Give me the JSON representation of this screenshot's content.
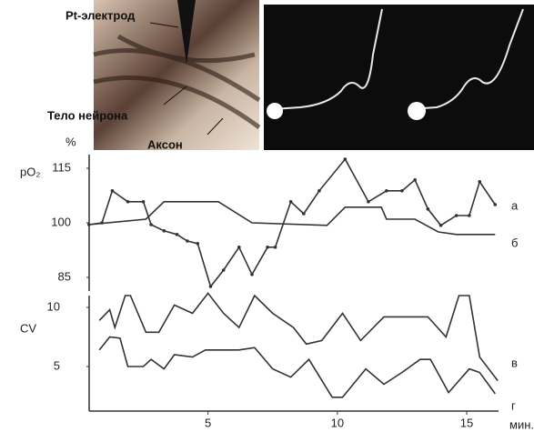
{
  "photos": {
    "labels": [
      "Pt-электрод",
      "Тело нейрона",
      "Аксон"
    ]
  },
  "chart_data": [
    {
      "type": "line",
      "ylabel": "pO₂",
      "ylabel_unit": "%",
      "xlim": [
        0.3,
        16.3
      ],
      "ylim": [
        82,
        119
      ],
      "yticks": [
        85,
        100,
        115
      ],
      "series": [
        {
          "name": "а",
          "color": "#333333",
          "markers": true,
          "x": [
            0.4,
            0.9,
            1.3,
            1.9,
            2.5,
            2.8,
            3.3,
            3.8,
            4.2,
            4.6,
            5.1,
            5.6,
            6.2,
            6.7,
            7.3,
            7.6,
            8.2,
            8.7,
            9.3,
            10.3,
            11.2,
            11.9,
            12.5,
            13.0,
            13.5,
            14.0,
            14.6,
            15.1,
            15.5,
            16.1
          ],
          "values": [
            99.5,
            100,
            108.8,
            105.8,
            105.8,
            99.5,
            97.8,
            96.8,
            95,
            94.3,
            82.5,
            87,
            93.3,
            85.8,
            93.3,
            93.3,
            105.8,
            102.5,
            108.8,
            117.5,
            105.8,
            108.8,
            108.8,
            111.8,
            103.8,
            99.3,
            102,
            102,
            111.3,
            105
          ]
        },
        {
          "name": "б",
          "color": "#333333",
          "markers": false,
          "x": [
            0.4,
            2.6,
            3.3,
            5.4,
            6.7,
            9.6,
            10.3,
            11.7,
            11.9,
            13.0,
            13.9,
            14.6,
            16.1
          ],
          "values": [
            99.5,
            101,
            105.8,
            105.8,
            100,
            99.3,
            104.3,
            104.3,
            101,
            101,
            97.5,
            96.8,
            96.8
          ]
        }
      ]
    },
    {
      "type": "line",
      "ylabel": "CV",
      "xlabel": "мин.",
      "xlim": [
        0.3,
        16.3
      ],
      "xticks": [
        5,
        10,
        15
      ],
      "ylim": [
        1.2,
        11.5
      ],
      "yticks": [
        5,
        10
      ],
      "series": [
        {
          "name": "в",
          "color": "#333333",
          "markers": false,
          "x": [
            0.8,
            1.2,
            1.4,
            1.8,
            2.0,
            2.6,
            3.1,
            3.7,
            4.4,
            5.0,
            5.6,
            6.2,
            6.8,
            7.5,
            8.3,
            8.8,
            9.4,
            10.2,
            10.9,
            11.8,
            13.5,
            14.2,
            14.7,
            15.1,
            15.5,
            16.2
          ],
          "values": [
            8.9,
            9.8,
            8.3,
            11,
            11,
            7.9,
            7.9,
            10.2,
            9.5,
            11.2,
            9.5,
            8.3,
            11,
            9.5,
            8.3,
            6.9,
            7.2,
            9.5,
            7.2,
            9.2,
            9.2,
            7.5,
            11,
            11,
            5.8,
            3.8
          ]
        },
        {
          "name": "г",
          "color": "#333333",
          "markers": false,
          "x": [
            0.8,
            1.2,
            1.6,
            1.9,
            2.5,
            2.8,
            3.3,
            3.7,
            4.4,
            4.9,
            6.2,
            6.8,
            7.5,
            8.2,
            8.9,
            9.8,
            10.2,
            11.1,
            11.8,
            12.5,
            13.2,
            13.6,
            14.3,
            15.1,
            15.5,
            16.1
          ],
          "values": [
            6.4,
            7.5,
            7.4,
            5,
            5,
            5.6,
            4.8,
            6,
            5.8,
            6.4,
            6.4,
            6.6,
            4.8,
            4.1,
            5.6,
            2.4,
            2.4,
            4.8,
            3.5,
            4.5,
            5.6,
            5.6,
            2.8,
            4.8,
            4.5,
            2.7
          ]
        }
      ]
    }
  ]
}
